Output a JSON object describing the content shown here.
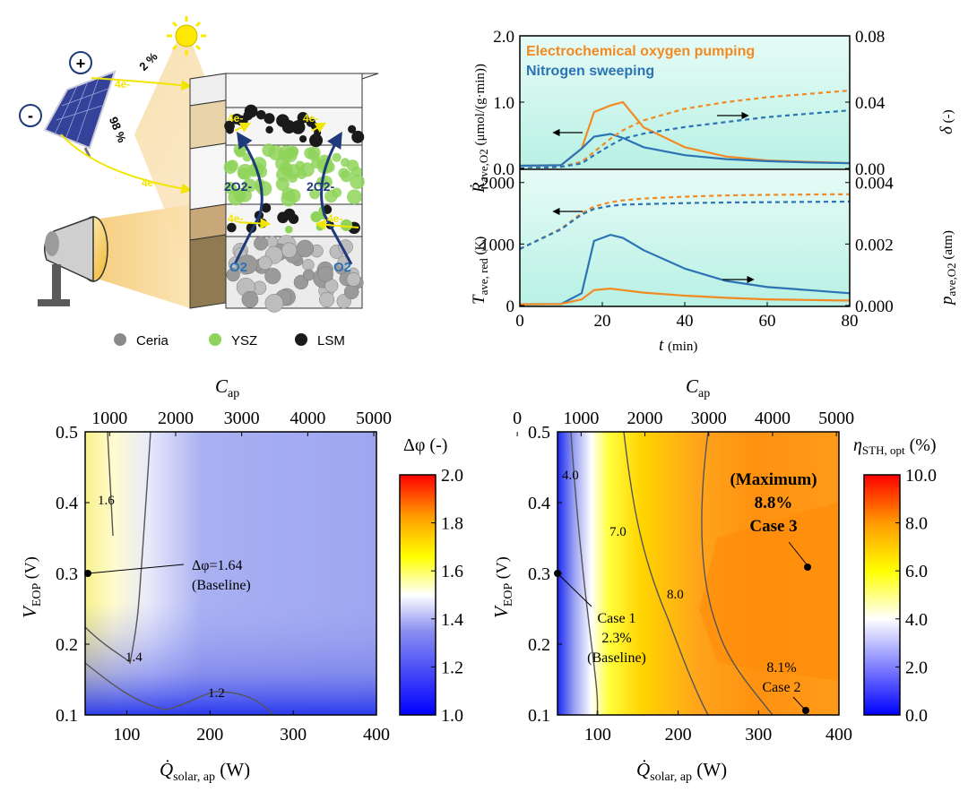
{
  "schematic": {
    "sun_split": [
      "2 %",
      "98 %"
    ],
    "electron_labels": [
      "4e-",
      "4e-",
      "4e-",
      "4e-",
      "4e-",
      "4e-"
    ],
    "oxide_labels": [
      "2O2-",
      "2O2-"
    ],
    "gas_labels": [
      "O2",
      "O2"
    ],
    "legend": [
      "Ceria",
      "YSZ",
      "LSM"
    ],
    "colors": {
      "ceria": "#8a8a8a",
      "ysz": "#8fd35a",
      "lsm": "#1a1a1a",
      "arrow": "#1e3a7a",
      "electron": "#f2e600"
    }
  },
  "chart_data": [
    {
      "type": "line",
      "panel": "top-right-upper",
      "x": [
        0,
        10,
        15,
        18,
        22,
        25,
        30,
        40,
        50,
        60,
        70,
        80
      ],
      "xlim": [
        0,
        80
      ],
      "ylim_left": [
        0,
        2.0
      ],
      "ylim_right": [
        0,
        0.08
      ],
      "left_ticks": [
        "0.0",
        "1.0",
        "2.0"
      ],
      "right_ticks": [
        "0.00",
        "0.04",
        "0.08"
      ],
      "ylabel_left": "Ṙ",
      "ylabel_left_sub": "ave,O2",
      "ylabel_left_unit": "(μmol/(g·min))",
      "ylabel_right": "δ",
      "ylabel_right_unit": "(-)",
      "legend": [
        "Electrochemical oxygen pumping",
        "Nitrogen sweeping"
      ],
      "series": [
        {
          "name": "Electrochemical oxygen pumping",
          "axis": "left",
          "style": "solid",
          "color": "#f28a24",
          "values": [
            0.04,
            0.05,
            0.3,
            0.85,
            0.95,
            1.0,
            0.62,
            0.32,
            0.18,
            0.12,
            0.1,
            0.08
          ]
        },
        {
          "name": "Nitrogen sweeping",
          "axis": "left",
          "style": "solid",
          "color": "#2b73b5",
          "values": [
            0.04,
            0.05,
            0.3,
            0.48,
            0.52,
            0.46,
            0.32,
            0.2,
            0.14,
            0.11,
            0.09,
            0.08
          ]
        },
        {
          "axis": "right",
          "style": "dashed",
          "color": "#f28a24",
          "values": [
            0.0,
            0.001,
            0.004,
            0.01,
            0.018,
            0.023,
            0.029,
            0.036,
            0.04,
            0.043,
            0.045,
            0.047
          ]
        },
        {
          "axis": "right",
          "style": "dashed",
          "color": "#2b73b5",
          "values": [
            0.0,
            0.001,
            0.003,
            0.008,
            0.014,
            0.018,
            0.021,
            0.025,
            0.028,
            0.031,
            0.033,
            0.035
          ]
        }
      ]
    },
    {
      "type": "line",
      "panel": "top-right-lower",
      "x": [
        0,
        10,
        15,
        18,
        22,
        25,
        30,
        40,
        50,
        60,
        70,
        80
      ],
      "xlim": [
        0,
        80
      ],
      "ylim_left": [
        0,
        2200
      ],
      "ylim_right": [
        0,
        0.0044
      ],
      "left_ticks": [
        "0",
        "1000",
        "2000"
      ],
      "right_ticks": [
        "0.000",
        "0.002",
        "0.004"
      ],
      "x_ticks": [
        "0",
        "20",
        "40",
        "60",
        "80"
      ],
      "xlabel": "t",
      "xlabel_unit": "(min)",
      "ylabel_left": "T",
      "ylabel_left_sub": "ave, red",
      "ylabel_left_unit": "(K)",
      "ylabel_right": "p",
      "ylabel_right_sub": "ave,O2",
      "ylabel_right_unit": "(atm)",
      "series": [
        {
          "axis": "left",
          "style": "dashed",
          "color": "#f28a24",
          "values": [
            920,
            1250,
            1500,
            1610,
            1680,
            1710,
            1740,
            1770,
            1790,
            1800,
            1805,
            1810
          ]
        },
        {
          "axis": "left",
          "style": "dashed",
          "color": "#2b73b5",
          "values": [
            920,
            1240,
            1480,
            1570,
            1620,
            1640,
            1650,
            1665,
            1675,
            1680,
            1685,
            1690
          ]
        },
        {
          "axis": "right",
          "style": "solid",
          "color": "#2b73b5",
          "values": [
            4e-05,
            5e-05,
            0.0004,
            0.0021,
            0.0023,
            0.0022,
            0.0018,
            0.0012,
            0.0008,
            0.0006,
            0.0005,
            0.0004
          ]
        },
        {
          "axis": "right",
          "style": "solid",
          "color": "#f28a24",
          "values": [
            4e-05,
            5e-05,
            0.0002,
            0.0005,
            0.00055,
            0.0005,
            0.00042,
            0.00032,
            0.00025,
            0.0002,
            0.00018,
            0.00016
          ]
        }
      ]
    },
    {
      "type": "heatmap",
      "panel": "bottom-left",
      "xlim": [
        50,
        400
      ],
      "ylim": [
        0.1,
        0.5
      ],
      "x_ticks": [
        "100",
        "200",
        "300",
        "400"
      ],
      "y_ticks": [
        "0.1",
        "0.2",
        "0.3",
        "0.4",
        "0.5"
      ],
      "top_ticks": [
        "1000",
        "2000",
        "3000",
        "4000",
        "5000"
      ],
      "top_label": "C",
      "top_label_sub": "ap",
      "xlabel": "Q̇",
      "xlabel_sub": "solar, ap",
      "xlabel_unit": "(W)",
      "ylabel": "V",
      "ylabel_sub": "EOP",
      "ylabel_unit": "(V)",
      "colorbar_label": "Δφ (-)",
      "colorbar_ticks": [
        "1.0",
        "1.2",
        "1.4",
        "1.6",
        "1.8",
        "2.0"
      ],
      "contours": [
        "1.6",
        "1.4",
        "1.2"
      ],
      "annotation": [
        "Δφ=1.64",
        "(Baseline)"
      ],
      "baseline_point": {
        "x": 50,
        "y": 0.3
      }
    },
    {
      "type": "heatmap",
      "panel": "bottom-right",
      "xlim": [
        50,
        400
      ],
      "ylim": [
        0.1,
        0.5
      ],
      "x_ticks": [
        "100",
        "200",
        "300",
        "400"
      ],
      "y_ticks": [
        "0.1",
        "0.2",
        "0.3",
        "0.4",
        "0.5"
      ],
      "top_ticks": [
        "0",
        "1000",
        "2000",
        "3000",
        "4000",
        "5000"
      ],
      "top_label": "C",
      "top_label_sub": "ap",
      "xlabel": "Q̇",
      "xlabel_sub": "solar, ap",
      "xlabel_unit": "(W)",
      "ylabel": "V",
      "ylabel_sub": "EOP",
      "ylabel_unit": "(V)",
      "colorbar_label": "η",
      "colorbar_label_sub": "STH, opt",
      "colorbar_unit": "(%)",
      "colorbar_ticks": [
        "0.0",
        "2.0",
        "4.0",
        "6.0",
        "8.0",
        "10.0"
      ],
      "contours": [
        "4.0",
        "7.0",
        "8.0"
      ],
      "annotations": {
        "max": [
          "(Maximum)",
          "8.8%",
          "Case 3"
        ],
        "case1": [
          "Case 1",
          "2.3%",
          "(Baseline)"
        ],
        "case2": [
          "8.1%",
          "Case 2"
        ]
      },
      "points": {
        "case1": {
          "x": 50,
          "y": 0.3
        },
        "case2": {
          "x": 355,
          "y": 0.1
        },
        "case3": {
          "x": 355,
          "y": 0.3
        }
      }
    }
  ]
}
